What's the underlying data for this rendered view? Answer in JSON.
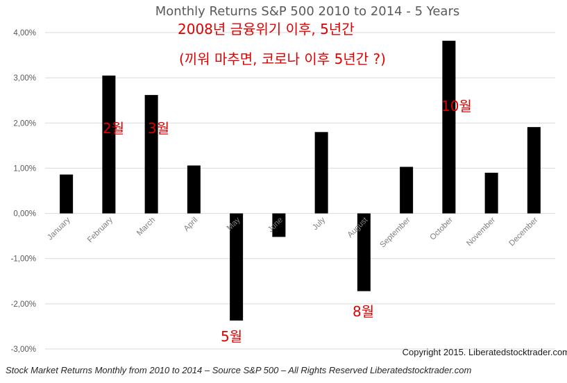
{
  "chart_data": {
    "type": "bar",
    "title": "Monthly Returns S&P 500 2010 to 2014 - 5 Years",
    "categories": [
      "January",
      "February",
      "March",
      "April",
      "May",
      "June",
      "July",
      "August",
      "September",
      "October",
      "November",
      "December"
    ],
    "values": [
      0.86,
      3.05,
      2.62,
      1.06,
      -2.37,
      -0.52,
      1.8,
      -1.72,
      1.03,
      3.82,
      0.9,
      1.91
    ],
    "ylim": [
      -3.0,
      4.0
    ],
    "yticks": [
      "4,00%",
      "3,00%",
      "2,00%",
      "1,00%",
      "0,00%",
      "-1,00%",
      "-2,00%",
      "-3,00%"
    ],
    "grid": true,
    "bar_color": "#000000",
    "annotations": [
      "2008년 금융위기 이후, 5년간",
      "(끼워 마추면, 코로나 이후 5년간 ?)",
      "2월",
      "3월",
      "5월",
      "8월",
      "10월"
    ],
    "annotation_color": "#e00000"
  },
  "copyright": "Copyright 2015. Liberatedstocktrader.com",
  "caption": "Stock Market Returns Monthly from 2010 to 2014 – Source S&P 500 – All Rights Reserved Liberatedstocktrader.com"
}
